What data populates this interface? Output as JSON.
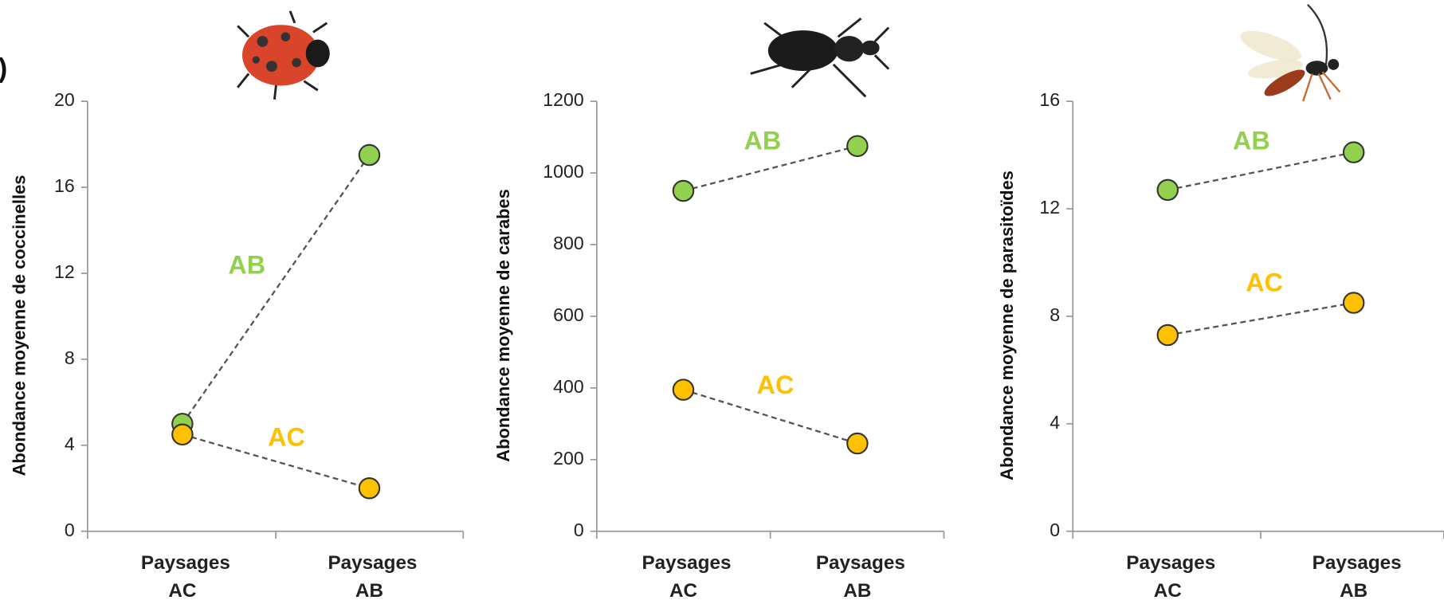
{
  "panel_label": ")",
  "chart_data": [
    {
      "type": "line",
      "ylabel": "Abondance moyenne de coccinelles",
      "categories": [
        "Paysages AC",
        "Paysages AB"
      ],
      "ylim": [
        0,
        20
      ],
      "yticks": [
        0,
        4,
        8,
        12,
        16,
        20
      ],
      "series": [
        {
          "name": "AB",
          "color": "#92d050",
          "values": [
            5.0,
            17.5
          ]
        },
        {
          "name": "AC",
          "color": "#ffc000",
          "values": [
            4.5,
            2.0
          ]
        }
      ]
    },
    {
      "type": "line",
      "ylabel": "Abondance moyenne de carabes",
      "categories": [
        "Paysages AC",
        "Paysages AB"
      ],
      "ylim": [
        0,
        1200
      ],
      "yticks": [
        0,
        200,
        400,
        600,
        800,
        1000,
        1200
      ],
      "series": [
        {
          "name": "AB",
          "color": "#92d050",
          "values": [
            950,
            1075
          ]
        },
        {
          "name": "AC",
          "color": "#ffc000",
          "values": [
            395,
            245
          ]
        }
      ]
    },
    {
      "type": "line",
      "ylabel": "Abondance moyenne de parasitoïdes",
      "categories": [
        "Paysages AC",
        "Paysages AB"
      ],
      "ylim": [
        0,
        16
      ],
      "yticks": [
        0,
        4,
        8,
        12,
        16
      ],
      "series": [
        {
          "name": "AB",
          "color": "#92d050",
          "values": [
            12.7,
            14.1
          ]
        },
        {
          "name": "AC",
          "color": "#ffc000",
          "values": [
            7.3,
            8.5
          ]
        }
      ]
    }
  ]
}
